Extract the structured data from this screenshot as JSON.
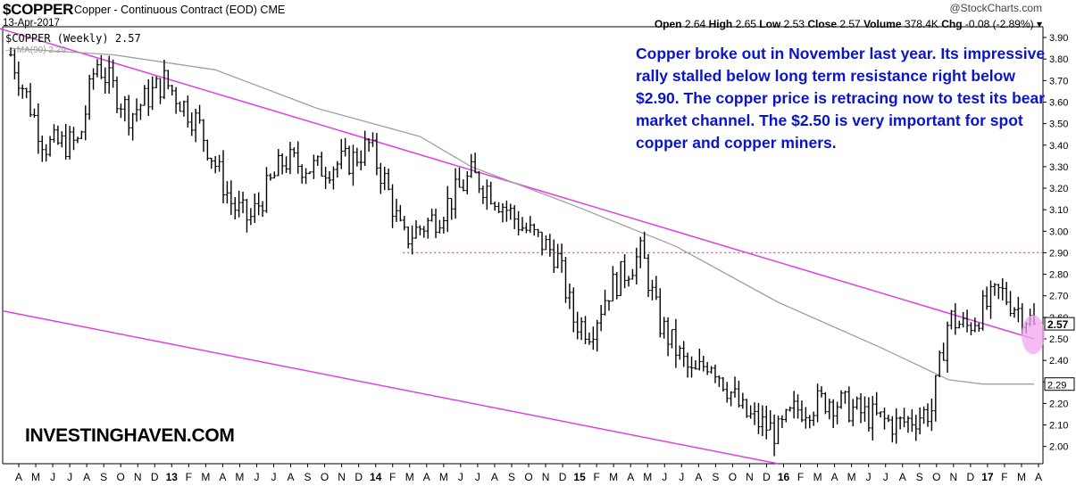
{
  "header": {
    "symbol": "$COPPER",
    "subtitle": "Copper - Continuous Contract (EOD) CME",
    "date": "13-Apr-2017",
    "brand": "@StockCharts.com",
    "open_label": "Open",
    "open": "2.64",
    "high_label": "High",
    "high": "2.65",
    "low_label": "Low",
    "low": "2.53",
    "close_label": "Close",
    "close": "2.57",
    "volume_label": "Volume",
    "volume": "378.4K",
    "chg_label": "Chg",
    "chg": "-0.08 (-2.89%)"
  },
  "legend": {
    "price": "$COPPER (Weekly) 2.57",
    "ma": "MA(90) 2.29"
  },
  "annotation": "Copper broke out in November last year. Its impressive rally stalled below long term resistance right below $2.90. The copper price is retracing now to test its bear market channel. The $2.50 is very important for spot copper and copper miners.",
  "watermark": "INVESTINGHAVEN.COM",
  "colors": {
    "price": "#000000",
    "ma": "#a0a0a0",
    "channel": "#e040e0",
    "annotation": "#0a14cc",
    "highlight": "#f2a6f0"
  },
  "chart_data": {
    "type": "line",
    "title": "$COPPER (Weekly)",
    "x_labels": [
      "A",
      "M",
      "J",
      "J",
      "A",
      "S",
      "O",
      "N",
      "D",
      "13",
      "F",
      "M",
      "A",
      "M",
      "J",
      "J",
      "A",
      "S",
      "O",
      "N",
      "D",
      "14",
      "F",
      "M",
      "A",
      "M",
      "J",
      "J",
      "A",
      "S",
      "O",
      "N",
      "D",
      "15",
      "F",
      "M",
      "A",
      "M",
      "J",
      "J",
      "A",
      "S",
      "O",
      "N",
      "D",
      "16",
      "F",
      "M",
      "A",
      "M",
      "J",
      "J",
      "A",
      "S",
      "O",
      "N",
      "D",
      "17",
      "F",
      "M",
      "A"
    ],
    "ylim": [
      1.92,
      3.95
    ],
    "y_ticks": [
      "3.90",
      "3.80",
      "3.70",
      "3.60",
      "3.50",
      "3.40",
      "3.30",
      "3.20",
      "3.10",
      "3.00",
      "2.90",
      "2.80",
      "2.70",
      "2.60",
      "2.50",
      "2.40",
      "2.30",
      "2.20",
      "2.10",
      "2.00"
    ],
    "grid": false,
    "series": [
      {
        "name": "$COPPER (Weekly)",
        "x": [
          "2012-04",
          "2012-06",
          "2012-08",
          "2012-09",
          "2012-11",
          "2013-01",
          "2013-03",
          "2013-05",
          "2013-06",
          "2013-08",
          "2013-10",
          "2013-12",
          "2014-01",
          "2014-02",
          "2014-03",
          "2014-05",
          "2014-07",
          "2014-08",
          "2014-10",
          "2014-12",
          "2015-01",
          "2015-02",
          "2015-03",
          "2015-05",
          "2015-06",
          "2015-08",
          "2015-09",
          "2015-11",
          "2016-01",
          "2016-02",
          "2016-04",
          "2016-06",
          "2016-08",
          "2016-10",
          "2016-11",
          "2016-12",
          "2017-02",
          "2017-04"
        ],
        "values": [
          3.82,
          3.4,
          3.41,
          3.79,
          3.54,
          3.7,
          3.5,
          3.12,
          3.05,
          3.33,
          3.29,
          3.33,
          3.4,
          3.22,
          2.96,
          3.07,
          3.26,
          3.2,
          3.02,
          2.89,
          2.59,
          2.54,
          2.72,
          2.9,
          2.58,
          2.32,
          2.41,
          2.15,
          2.06,
          2.17,
          2.22,
          2.15,
          2.1,
          2.17,
          2.6,
          2.55,
          2.72,
          2.57
        ]
      },
      {
        "name": "MA(90)",
        "x": [
          "2012-04",
          "2012-10",
          "2013-04",
          "2013-10",
          "2014-04",
          "2014-07",
          "2015-01",
          "2015-07",
          "2016-01",
          "2016-07",
          "2016-11",
          "2017-01",
          "2017-04"
        ],
        "values": [
          3.85,
          3.82,
          3.75,
          3.57,
          3.44,
          3.3,
          3.12,
          2.93,
          2.67,
          2.46,
          2.31,
          2.29,
          2.29
        ]
      },
      {
        "name": "Resistance",
        "x": [
          "2012-03",
          "2017-04"
        ],
        "values": [
          3.95,
          2.5
        ]
      },
      {
        "name": "Lower channel",
        "x": [
          "2012-03",
          "2016-01"
        ],
        "values": [
          2.63,
          1.92
        ]
      },
      {
        "name": "Level 2.90",
        "x": [
          "2014-03",
          "2017-04"
        ],
        "values": [
          2.9,
          2.9
        ]
      }
    ],
    "last_value": "2.57",
    "ma_value": "2.29"
  }
}
